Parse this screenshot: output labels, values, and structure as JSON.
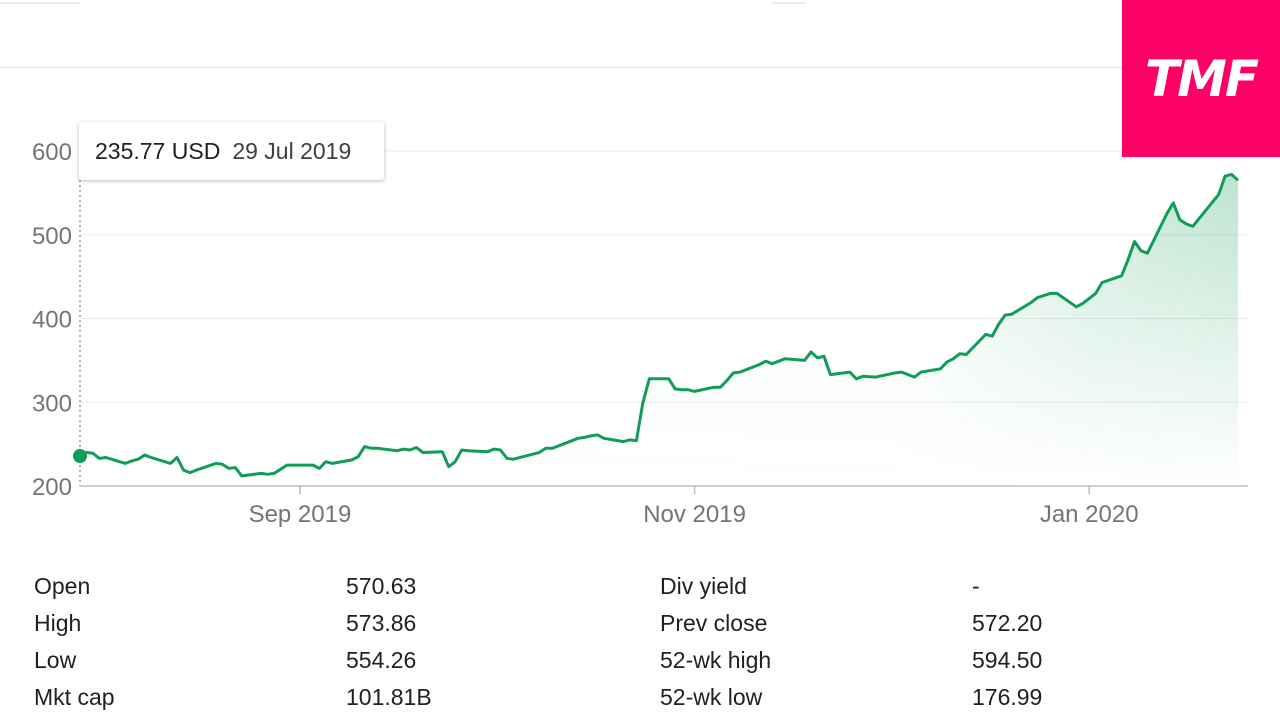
{
  "logo": {
    "text": "TMF",
    "color": "#ff0066"
  },
  "tooltip": {
    "price": "235.77 USD",
    "date": "29 Jul 2019"
  },
  "colors": {
    "line": "#0f9d58",
    "grid": "#ebebeb",
    "axis": "#70757a",
    "text": "#202124"
  },
  "chart_data": {
    "type": "line",
    "title": "",
    "xlabel": "",
    "ylabel": "",
    "ylim": [
      200,
      600
    ],
    "yticks": [
      {
        "value": 200,
        "label": "200"
      },
      {
        "value": 300,
        "label": "300"
      },
      {
        "value": 400,
        "label": "400"
      },
      {
        "value": 500,
        "label": "500"
      },
      {
        "value": 600,
        "label": "600"
      }
    ],
    "xticks": [
      {
        "date": "2019-09-01",
        "label": "Sep 2019"
      },
      {
        "date": "2019-11-01",
        "label": "Nov 2019"
      },
      {
        "date": "2020-01-01",
        "label": "Jan 2020"
      }
    ],
    "grid": true,
    "fill": "gradient under line",
    "series": [
      {
        "values": [
          [
            "2019-07-29",
            235.8
          ],
          [
            "2019-07-30",
            240
          ],
          [
            "2019-07-31",
            239
          ],
          [
            "2019-08-01",
            233
          ],
          [
            "2019-08-02",
            234
          ],
          [
            "2019-08-05",
            227
          ],
          [
            "2019-08-06",
            230
          ],
          [
            "2019-08-07",
            232
          ],
          [
            "2019-08-08",
            237
          ],
          [
            "2019-08-09",
            234
          ],
          [
            "2019-08-12",
            227
          ],
          [
            "2019-08-13",
            234
          ],
          [
            "2019-08-14",
            219
          ],
          [
            "2019-08-15",
            216
          ],
          [
            "2019-08-16",
            219
          ],
          [
            "2019-08-19",
            227
          ],
          [
            "2019-08-20",
            226
          ],
          [
            "2019-08-21",
            221
          ],
          [
            "2019-08-22",
            222
          ],
          [
            "2019-08-23",
            212
          ],
          [
            "2019-08-26",
            215
          ],
          [
            "2019-08-27",
            214
          ],
          [
            "2019-08-28",
            215
          ],
          [
            "2019-08-29",
            220
          ],
          [
            "2019-08-30",
            225
          ],
          [
            "2019-09-03",
            225
          ],
          [
            "2019-09-04",
            221
          ],
          [
            "2019-09-05",
            229
          ],
          [
            "2019-09-06",
            227
          ],
          [
            "2019-09-09",
            231
          ],
          [
            "2019-09-10",
            235
          ],
          [
            "2019-09-11",
            247
          ],
          [
            "2019-09-12",
            245
          ],
          [
            "2019-09-13",
            245
          ],
          [
            "2019-09-16",
            242
          ],
          [
            "2019-09-17",
            244
          ],
          [
            "2019-09-18",
            243
          ],
          [
            "2019-09-19",
            246
          ],
          [
            "2019-09-20",
            240
          ],
          [
            "2019-09-23",
            241
          ],
          [
            "2019-09-24",
            223
          ],
          [
            "2019-09-25",
            229
          ],
          [
            "2019-09-26",
            243
          ],
          [
            "2019-09-27",
            242
          ],
          [
            "2019-09-30",
            241
          ],
          [
            "2019-10-01",
            244
          ],
          [
            "2019-10-02",
            243
          ],
          [
            "2019-10-03",
            233
          ],
          [
            "2019-10-04",
            232
          ],
          [
            "2019-10-07",
            238
          ],
          [
            "2019-10-08",
            240
          ],
          [
            "2019-10-09",
            245
          ],
          [
            "2019-10-10",
            245
          ],
          [
            "2019-10-11",
            248
          ],
          [
            "2019-10-14",
            257
          ],
          [
            "2019-10-15",
            258
          ],
          [
            "2019-10-16",
            260
          ],
          [
            "2019-10-17",
            261
          ],
          [
            "2019-10-18",
            257
          ],
          [
            "2019-10-21",
            253
          ],
          [
            "2019-10-22",
            255
          ],
          [
            "2019-10-23",
            254
          ],
          [
            "2019-10-24",
            299
          ],
          [
            "2019-10-25",
            328
          ],
          [
            "2019-10-28",
            328
          ],
          [
            "2019-10-29",
            316
          ],
          [
            "2019-10-30",
            315
          ],
          [
            "2019-10-31",
            315
          ],
          [
            "2019-11-01",
            313
          ],
          [
            "2019-11-04",
            318
          ],
          [
            "2019-11-05",
            318
          ],
          [
            "2019-11-06",
            326
          ],
          [
            "2019-11-07",
            335
          ],
          [
            "2019-11-08",
            336
          ],
          [
            "2019-11-11",
            345
          ],
          [
            "2019-11-12",
            349
          ],
          [
            "2019-11-13",
            346
          ],
          [
            "2019-11-14",
            349
          ],
          [
            "2019-11-15",
            352
          ],
          [
            "2019-11-18",
            350
          ],
          [
            "2019-11-19",
            360
          ],
          [
            "2019-11-20",
            353
          ],
          [
            "2019-11-21",
            355
          ],
          [
            "2019-11-22",
            333
          ],
          [
            "2019-11-25",
            336
          ],
          [
            "2019-11-26",
            328
          ],
          [
            "2019-11-27",
            331
          ],
          [
            "2019-11-29",
            330
          ],
          [
            "2019-12-02",
            335
          ],
          [
            "2019-12-03",
            336
          ],
          [
            "2019-12-04",
            333
          ],
          [
            "2019-12-05",
            330
          ],
          [
            "2019-12-06",
            336
          ],
          [
            "2019-12-09",
            340
          ],
          [
            "2019-12-10",
            348
          ],
          [
            "2019-12-11",
            352
          ],
          [
            "2019-12-12",
            358
          ],
          [
            "2019-12-13",
            357
          ],
          [
            "2019-12-16",
            381
          ],
          [
            "2019-12-17",
            379
          ],
          [
            "2019-12-18",
            393
          ],
          [
            "2019-12-19",
            404
          ],
          [
            "2019-12-20",
            405
          ],
          [
            "2019-12-23",
            419
          ],
          [
            "2019-12-24",
            425
          ],
          [
            "2019-12-26",
            430
          ],
          [
            "2019-12-27",
            430
          ],
          [
            "2019-12-30",
            414
          ],
          [
            "2019-12-31",
            418
          ],
          [
            "2020-01-02",
            430
          ],
          [
            "2020-01-03",
            443
          ],
          [
            "2020-01-06",
            451
          ],
          [
            "2020-01-07",
            470
          ],
          [
            "2020-01-08",
            492
          ],
          [
            "2020-01-09",
            481
          ],
          [
            "2020-01-10",
            478
          ],
          [
            "2020-01-13",
            525
          ],
          [
            "2020-01-14",
            538
          ],
          [
            "2020-01-15",
            518
          ],
          [
            "2020-01-16",
            513
          ],
          [
            "2020-01-17",
            510
          ],
          [
            "2020-01-21",
            548
          ],
          [
            "2020-01-22",
            570
          ],
          [
            "2020-01-23",
            572
          ],
          [
            "2020-01-24",
            565
          ]
        ]
      }
    ]
  },
  "stats": {
    "left": [
      {
        "label": "Open",
        "value": "570.63"
      },
      {
        "label": "High",
        "value": "573.86"
      },
      {
        "label": "Low",
        "value": "554.26"
      },
      {
        "label": "Mkt cap",
        "value": "101.81B"
      }
    ],
    "right": [
      {
        "label": "Div yield",
        "value": "-"
      },
      {
        "label": "Prev close",
        "value": "572.20"
      },
      {
        "label": "52-wk high",
        "value": "594.50"
      },
      {
        "label": "52-wk low",
        "value": "176.99"
      }
    ]
  }
}
